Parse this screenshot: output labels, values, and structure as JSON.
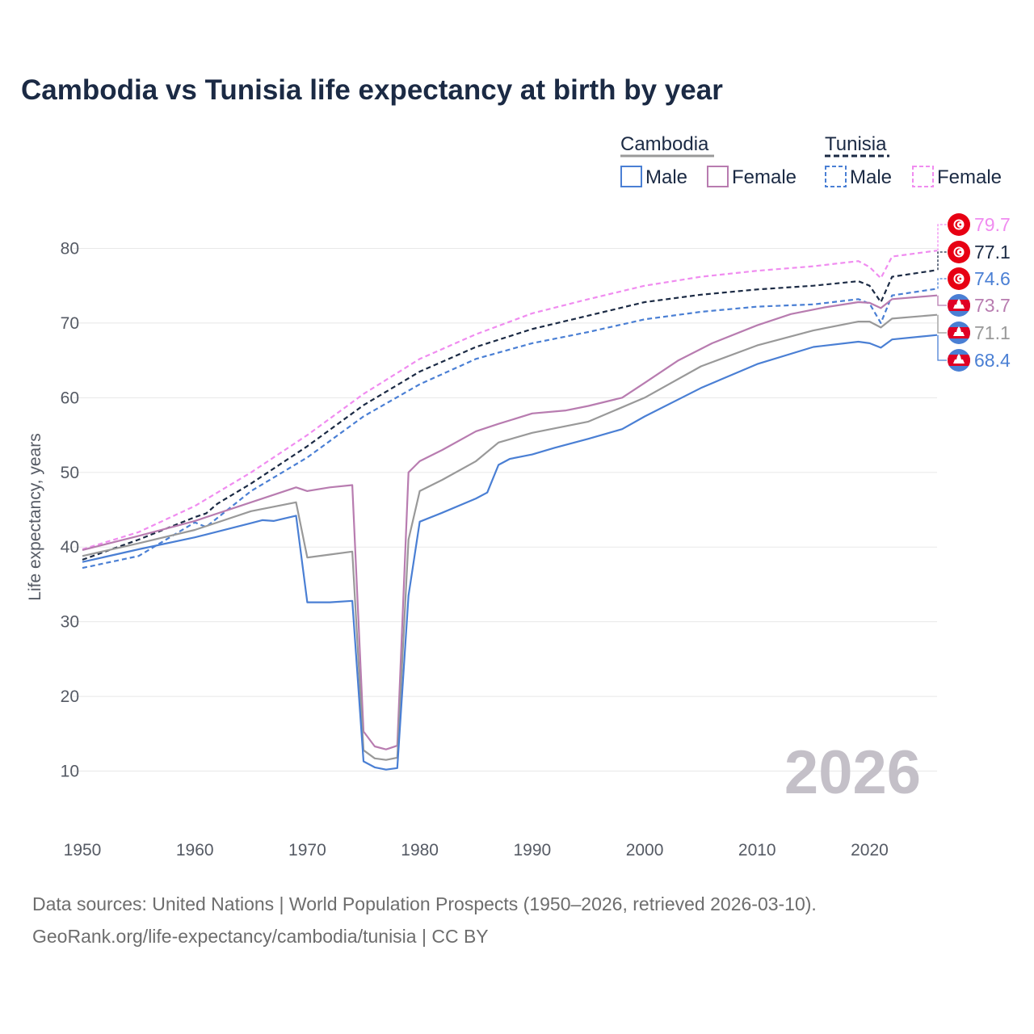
{
  "chart_data": {
    "type": "line",
    "title": "Cambodia vs Tunisia life expectancy at birth by year",
    "ylabel": "Life expectancy, years",
    "xlabel": "",
    "xlim": [
      1950,
      2026
    ],
    "ylim": [
      4,
      86
    ],
    "x_ticks": [
      1950,
      1960,
      1970,
      1980,
      1990,
      2000,
      2010,
      2020
    ],
    "y_ticks": [
      10,
      20,
      30,
      40,
      50,
      60,
      70,
      80
    ],
    "grid": true,
    "year_label": "2026",
    "legend": {
      "groups": [
        {
          "label": "Cambodia",
          "color": "#999999",
          "dash": "solid"
        },
        {
          "label": "Tunisia",
          "color": "#1b2a44",
          "dash": "dashed"
        }
      ],
      "items": [
        {
          "label": "Male",
          "color": "#4a7fd4",
          "dash": "solid"
        },
        {
          "label": "Female",
          "color": "#b87cb0",
          "dash": "solid"
        },
        {
          "label": "Male",
          "color": "#4a7fd4",
          "dash": "dashed"
        },
        {
          "label": "Female",
          "color": "#f08cf0",
          "dash": "dashed"
        }
      ]
    },
    "series": [
      {
        "name": "Tunisia Female",
        "country": "Tunisia",
        "flag": "tunisia",
        "color": "#f08cf0",
        "dash": "dashed",
        "end_label": "79.7",
        "points": [
          [
            1950,
            39.7
          ],
          [
            1955,
            42
          ],
          [
            1960,
            45.5
          ],
          [
            1965,
            50
          ],
          [
            1970,
            55
          ],
          [
            1975,
            60.5
          ],
          [
            1980,
            65.2
          ],
          [
            1985,
            68.5
          ],
          [
            1990,
            71.3
          ],
          [
            1995,
            73.2
          ],
          [
            2000,
            75
          ],
          [
            2005,
            76.2
          ],
          [
            2010,
            77
          ],
          [
            2015,
            77.6
          ],
          [
            2019,
            78.3
          ],
          [
            2020,
            77.5
          ],
          [
            2021,
            76
          ],
          [
            2022,
            78.9
          ],
          [
            2026,
            79.7
          ]
        ]
      },
      {
        "name": "Tunisia Total",
        "country": "Tunisia",
        "flag": "tunisia",
        "color": "#1b2a44",
        "dash": "dashed",
        "end_label": "77.1",
        "points": [
          [
            1950,
            38.3
          ],
          [
            1955,
            41
          ],
          [
            1960,
            44
          ],
          [
            1961,
            44.5
          ],
          [
            1962,
            45.8
          ],
          [
            1965,
            48.5
          ],
          [
            1970,
            53.5
          ],
          [
            1975,
            59
          ],
          [
            1980,
            63.5
          ],
          [
            1985,
            66.8
          ],
          [
            1990,
            69.2
          ],
          [
            1995,
            71
          ],
          [
            2000,
            72.8
          ],
          [
            2005,
            73.8
          ],
          [
            2010,
            74.5
          ],
          [
            2015,
            75
          ],
          [
            2019,
            75.6
          ],
          [
            2020,
            75
          ],
          [
            2021,
            72.8
          ],
          [
            2022,
            76.2
          ],
          [
            2026,
            77.1
          ]
        ]
      },
      {
        "name": "Tunisia Male",
        "country": "Tunisia",
        "flag": "tunisia",
        "color": "#4a7fd4",
        "dash": "dashed",
        "end_label": "74.6",
        "points": [
          [
            1950,
            37.2
          ],
          [
            1955,
            38.8
          ],
          [
            1960,
            43.3
          ],
          [
            1961,
            42.7
          ],
          [
            1965,
            47.5
          ],
          [
            1970,
            52
          ],
          [
            1975,
            57.5
          ],
          [
            1980,
            61.8
          ],
          [
            1985,
            65.2
          ],
          [
            1990,
            67.3
          ],
          [
            1995,
            68.8
          ],
          [
            2000,
            70.5
          ],
          [
            2005,
            71.5
          ],
          [
            2010,
            72.2
          ],
          [
            2015,
            72.5
          ],
          [
            2019,
            73.2
          ],
          [
            2020,
            72.6
          ],
          [
            2021,
            70
          ],
          [
            2022,
            73.7
          ],
          [
            2026,
            74.6
          ]
        ]
      },
      {
        "name": "Cambodia Female",
        "country": "Cambodia",
        "flag": "cambodia",
        "color": "#b87cb0",
        "dash": "solid",
        "end_label": "73.7",
        "points": [
          [
            1950,
            39.6
          ],
          [
            1955,
            41.5
          ],
          [
            1960,
            43.5
          ],
          [
            1965,
            46
          ],
          [
            1968,
            47.5
          ],
          [
            1969,
            48
          ],
          [
            1970,
            47.5
          ],
          [
            1972,
            48
          ],
          [
            1974,
            48.3
          ],
          [
            1975,
            15.3
          ],
          [
            1976,
            13.3
          ],
          [
            1977,
            12.9
          ],
          [
            1978,
            13.4
          ],
          [
            1979,
            50
          ],
          [
            1980,
            51.5
          ],
          [
            1982,
            53
          ],
          [
            1985,
            55.5
          ],
          [
            1987,
            56.5
          ],
          [
            1990,
            57.9
          ],
          [
            1993,
            58.3
          ],
          [
            1995,
            58.9
          ],
          [
            1998,
            60
          ],
          [
            2000,
            62
          ],
          [
            2003,
            65
          ],
          [
            2006,
            67.3
          ],
          [
            2010,
            69.7
          ],
          [
            2013,
            71.2
          ],
          [
            2016,
            72.1
          ],
          [
            2019,
            72.8
          ],
          [
            2020,
            72.7
          ],
          [
            2021,
            72
          ],
          [
            2022,
            73.2
          ],
          [
            2026,
            73.7
          ]
        ]
      },
      {
        "name": "Cambodia Total",
        "country": "Cambodia",
        "flag": "cambodia",
        "color": "#999999",
        "dash": "solid",
        "end_label": "71.1",
        "points": [
          [
            1950,
            38.8
          ],
          [
            1955,
            40.5
          ],
          [
            1960,
            42.3
          ],
          [
            1965,
            44.8
          ],
          [
            1969,
            46
          ],
          [
            1970,
            38.6
          ],
          [
            1972,
            39
          ],
          [
            1974,
            39.4
          ],
          [
            1975,
            12.8
          ],
          [
            1976,
            11.7
          ],
          [
            1977,
            11.5
          ],
          [
            1978,
            11.8
          ],
          [
            1979,
            41
          ],
          [
            1980,
            47.5
          ],
          [
            1982,
            49
          ],
          [
            1985,
            51.5
          ],
          [
            1987,
            54
          ],
          [
            1990,
            55.3
          ],
          [
            1995,
            56.8
          ],
          [
            2000,
            60
          ],
          [
            2005,
            64.2
          ],
          [
            2010,
            67
          ],
          [
            2015,
            69
          ],
          [
            2019,
            70.2
          ],
          [
            2020,
            70.2
          ],
          [
            2021,
            69.4
          ],
          [
            2022,
            70.6
          ],
          [
            2026,
            71.1
          ]
        ]
      },
      {
        "name": "Cambodia Male",
        "country": "Cambodia",
        "flag": "cambodia",
        "color": "#4a7fd4",
        "dash": "solid",
        "end_label": "68.4",
        "points": [
          [
            1950,
            38
          ],
          [
            1955,
            39.7
          ],
          [
            1960,
            41.3
          ],
          [
            1965,
            43.2
          ],
          [
            1966,
            43.6
          ],
          [
            1967,
            43.5
          ],
          [
            1969,
            44.2
          ],
          [
            1970,
            32.6
          ],
          [
            1972,
            32.6
          ],
          [
            1974,
            32.8
          ],
          [
            1975,
            11.3
          ],
          [
            1976,
            10.5
          ],
          [
            1977,
            10.2
          ],
          [
            1978,
            10.4
          ],
          [
            1979,
            33.5
          ],
          [
            1980,
            43.4
          ],
          [
            1982,
            44.6
          ],
          [
            1985,
            46.5
          ],
          [
            1986,
            47.3
          ],
          [
            1987,
            51
          ],
          [
            1988,
            51.8
          ],
          [
            1990,
            52.4
          ],
          [
            1992,
            53.3
          ],
          [
            1995,
            54.5
          ],
          [
            1998,
            55.8
          ],
          [
            2000,
            57.5
          ],
          [
            2005,
            61.3
          ],
          [
            2010,
            64.5
          ],
          [
            2015,
            66.8
          ],
          [
            2019,
            67.5
          ],
          [
            2020,
            67.3
          ],
          [
            2021,
            66.7
          ],
          [
            2022,
            67.8
          ],
          [
            2026,
            68.4
          ]
        ]
      }
    ]
  },
  "footer": {
    "line1": "Data sources: United Nations | World Population Prospects (1950–2026, retrieved 2026-03-10).",
    "line2": "GeoRank.org/life-expectancy/cambodia/tunisia | CC BY"
  },
  "colors": {
    "title": "#1b2a44",
    "axis_text": "#555a64",
    "grid": "#e8e8e8",
    "watermark": "#c4c0c8",
    "tunisia_red": "#e70013",
    "cambodia_blue": "#4a7fd4",
    "cambodia_red": "#e00025"
  }
}
